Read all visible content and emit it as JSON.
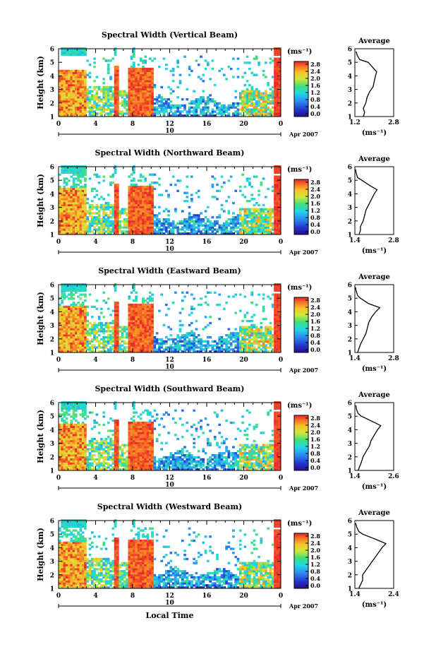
{
  "figure": {
    "xlabel": "Local Time",
    "date_label": "Apr 2007",
    "day_label": "10",
    "colorbar_unit": "(ms⁻¹)",
    "colorbar_ticks": [
      "0.0",
      "0.4",
      "0.8",
      "1.2",
      "1.6",
      "2.0",
      "2.4",
      "2.8"
    ],
    "average_title": "Average",
    "average_unit": "(ms⁻¹)",
    "x_ticks": [
      "0",
      "4",
      "8",
      "12",
      "16",
      "20",
      "0"
    ],
    "y_ticks": [
      "1",
      "2",
      "3",
      "4",
      "5",
      "6"
    ],
    "ylabel": "Height (km)"
  },
  "chart_data": [
    {
      "type": "heatmap",
      "title": "Spectral Width (Vertical Beam)",
      "xlabel": "Local Time",
      "ylabel": "Height (km)",
      "xlim": [
        0,
        24
      ],
      "ylim": [
        1,
        6
      ],
      "zlim": [
        0.0,
        2.8
      ],
      "average": {
        "type": "line",
        "title": "Average",
        "xlabel": "(ms⁻¹)",
        "xlim": [
          1.2,
          2.8
        ],
        "xticks": [
          "1.2",
          "2.8"
        ],
        "ylim": [
          1,
          6
        ],
        "height": [
          1.0,
          1.3,
          1.6,
          2.0,
          2.4,
          2.8,
          3.2,
          3.6,
          4.0,
          4.3,
          4.6,
          5.0,
          5.2,
          5.5,
          5.8
        ],
        "value": [
          1.55,
          1.6,
          1.55,
          1.65,
          1.7,
          1.8,
          1.95,
          2.0,
          2.05,
          2.1,
          1.95,
          1.75,
          1.4,
          1.3,
          1.25
        ]
      }
    },
    {
      "type": "heatmap",
      "title": "Spectral Width (Northward Beam)",
      "xlabel": "Local Time",
      "ylabel": "Height (km)",
      "xlim": [
        0,
        24
      ],
      "ylim": [
        1,
        6
      ],
      "zlim": [
        0.0,
        2.8
      ],
      "average": {
        "type": "line",
        "title": "Average",
        "xlabel": "(ms⁻¹)",
        "xlim": [
          1.4,
          2.8
        ],
        "xticks": [
          "1.4",
          "2.8"
        ],
        "ylim": [
          1,
          6
        ],
        "height": [
          1.0,
          1.3,
          1.6,
          2.0,
          2.4,
          2.8,
          3.2,
          3.6,
          4.0,
          4.3,
          4.6,
          5.0,
          5.2,
          5.5,
          5.8
        ],
        "value": [
          1.55,
          1.6,
          1.6,
          1.7,
          1.75,
          1.8,
          1.9,
          2.0,
          2.1,
          2.2,
          1.95,
          1.65,
          1.5,
          1.45,
          1.42
        ]
      }
    },
    {
      "type": "heatmap",
      "title": "Spectral Width (Eastward Beam)",
      "xlabel": "Local Time",
      "ylabel": "Height (km)",
      "xlim": [
        0,
        24
      ],
      "ylim": [
        1,
        6
      ],
      "zlim": [
        0.0,
        2.8
      ],
      "average": {
        "type": "line",
        "title": "Average",
        "xlabel": "(ms⁻¹)",
        "xlim": [
          1.4,
          2.8
        ],
        "xticks": [
          "1.4",
          "2.8"
        ],
        "ylim": [
          1,
          6
        ],
        "height": [
          1.0,
          1.3,
          1.6,
          2.0,
          2.4,
          2.8,
          3.2,
          3.6,
          4.0,
          4.3,
          4.6,
          5.0,
          5.2,
          5.5,
          5.8
        ],
        "value": [
          1.5,
          1.55,
          1.6,
          1.7,
          1.8,
          1.85,
          1.9,
          2.0,
          2.15,
          2.3,
          1.9,
          1.6,
          1.5,
          1.45,
          1.42
        ]
      }
    },
    {
      "type": "heatmap",
      "title": "Spectral Width (Southward Beam)",
      "xlabel": "Local Time",
      "ylabel": "Height (km)",
      "xlim": [
        0,
        24
      ],
      "ylim": [
        1,
        6
      ],
      "zlim": [
        0.0,
        2.8
      ],
      "average": {
        "type": "line",
        "title": "Average",
        "xlabel": "(ms⁻¹)",
        "xlim": [
          1.4,
          2.6
        ],
        "xticks": [
          "1.4",
          "2.6"
        ],
        "ylim": [
          1,
          6
        ],
        "height": [
          1.0,
          1.3,
          1.6,
          2.0,
          2.4,
          2.8,
          3.2,
          3.6,
          4.0,
          4.3,
          4.6,
          5.0,
          5.2,
          5.5,
          5.8
        ],
        "value": [
          1.5,
          1.55,
          1.6,
          1.65,
          1.75,
          1.85,
          1.9,
          2.0,
          2.1,
          2.2,
          1.95,
          1.6,
          1.5,
          1.45,
          1.43
        ]
      }
    },
    {
      "type": "heatmap",
      "title": "Spectral Width (Westward Beam)",
      "xlabel": "Local Time",
      "ylabel": "Height (km)",
      "xlim": [
        0,
        24
      ],
      "ylim": [
        1,
        6
      ],
      "zlim": [
        0.0,
        2.8
      ],
      "average": {
        "type": "line",
        "title": "Average",
        "xlabel": "(ms⁻¹)",
        "xlim": [
          1.4,
          2.4
        ],
        "xticks": [
          "1.4",
          "2.4"
        ],
        "ylim": [
          1,
          6
        ],
        "height": [
          1.0,
          1.3,
          1.6,
          2.0,
          2.4,
          2.8,
          3.2,
          3.6,
          4.0,
          4.3,
          4.6,
          5.0,
          5.2,
          5.5,
          5.8
        ],
        "value": [
          1.5,
          1.55,
          1.6,
          1.6,
          1.7,
          1.8,
          1.9,
          2.0,
          2.1,
          2.2,
          1.95,
          1.6,
          1.5,
          1.45,
          1.42
        ]
      }
    }
  ]
}
